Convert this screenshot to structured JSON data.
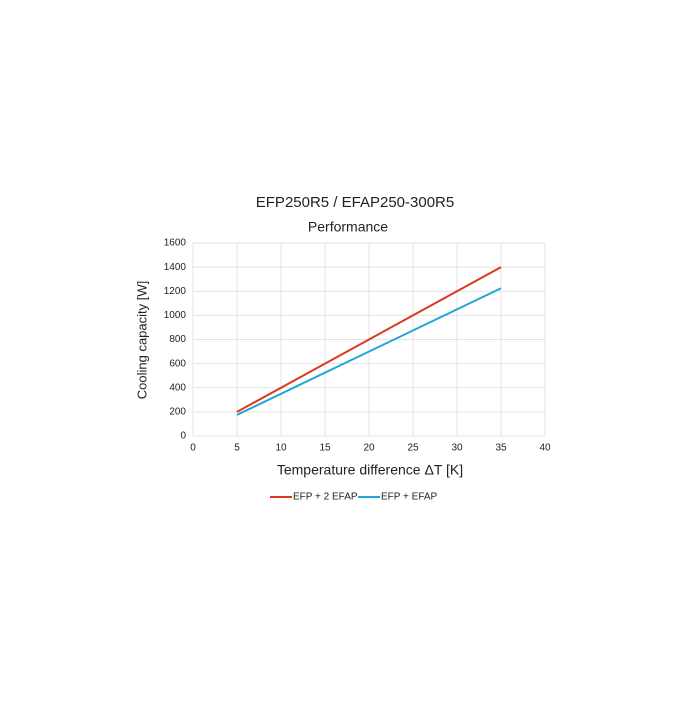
{
  "chart_data": {
    "type": "line",
    "title": "EFP250R5 / EFAP250-300R5",
    "subtitle": "Performance",
    "x_label": "Temperature difference ΔT [K]",
    "y_label": "Cooling capacity [W]",
    "x": [
      5,
      35
    ],
    "series": [
      {
        "name": "EFP + 2 EFAP",
        "color": "#d9391f",
        "values": [
          200,
          1400
        ]
      },
      {
        "name": "EFP + EFAP",
        "color": "#1ea7d6",
        "values": [
          175,
          1225
        ]
      }
    ],
    "xlim": [
      0,
      40
    ],
    "xticks": [
      0,
      5,
      10,
      15,
      20,
      25,
      30,
      35,
      40
    ],
    "ylim": [
      0,
      1600
    ],
    "yticks": [
      0,
      200,
      400,
      600,
      800,
      1000,
      1200,
      1400,
      1600
    ],
    "grid": true
  }
}
